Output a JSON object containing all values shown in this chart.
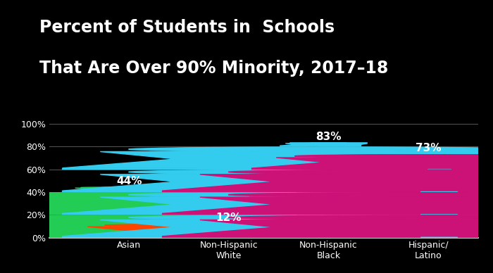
{
  "title_line1": "Percent of Students in  Schools",
  "title_line2": "That Are Over 90% Minority, 2017–18",
  "categories": [
    "Asian",
    "Non-Hispanic\nWhite",
    "Non-Hispanic\nBlack",
    "Hispanic/\nLatino"
  ],
  "values": [
    44,
    12,
    83,
    73
  ],
  "colors": [
    "#22cc55",
    "#ff4400",
    "#33ccee",
    "#cc1177"
  ],
  "bg_color": "#000000",
  "text_color": "#ffffff",
  "grid_color": "#666666",
  "yticks": [
    0,
    20,
    40,
    60,
    80,
    100
  ],
  "ylabels": [
    "0%",
    "20%",
    "40%",
    "60%",
    "80%",
    "100%"
  ],
  "title_fontsize": 17,
  "label_fontsize": 9,
  "value_fontsize": 11,
  "xlim": [
    -0.5,
    3.8
  ],
  "ylim": [
    0,
    108
  ],
  "x_positions": [
    0.3,
    1.3,
    2.3,
    3.3
  ]
}
